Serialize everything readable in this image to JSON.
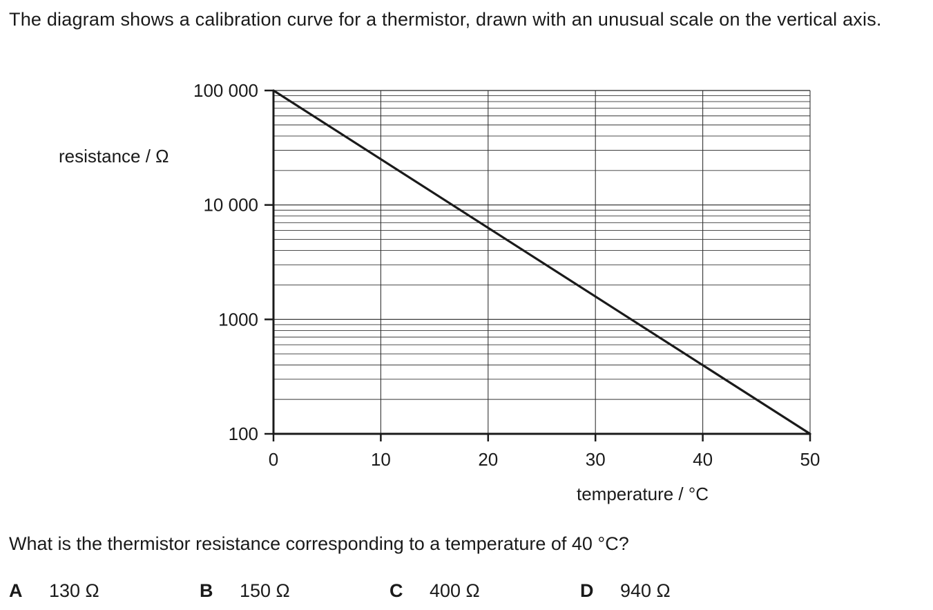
{
  "question": {
    "intro": "The diagram shows a calibration curve for a thermistor, drawn with an unusual scale on the vertical axis.",
    "prompt": "What is the thermistor resistance corresponding to a temperature of 40 °C?",
    "options": [
      {
        "letter": "A",
        "text": "130 Ω"
      },
      {
        "letter": "B",
        "text": "150 Ω"
      },
      {
        "letter": "C",
        "text": "400 Ω"
      },
      {
        "letter": "D",
        "text": "940 Ω"
      }
    ]
  },
  "chart_data": {
    "type": "line",
    "title": "",
    "xlabel": "temperature / °C",
    "ylabel": "resistance / Ω",
    "xlim": [
      0,
      50
    ],
    "ylim": [
      100,
      100000
    ],
    "y_scale": "log",
    "x_ticks": [
      0,
      10,
      20,
      30,
      40,
      50
    ],
    "x_tick_labels": [
      "0",
      "10",
      "20",
      "30",
      "40",
      "50"
    ],
    "y_ticks": [
      100,
      1000,
      10000,
      100000
    ],
    "y_tick_labels": [
      "100",
      "1000",
      "10 000",
      "100 000"
    ],
    "grid": true,
    "series": [
      {
        "x": [
          0,
          50
        ],
        "y": [
          100000,
          100
        ]
      }
    ]
  }
}
